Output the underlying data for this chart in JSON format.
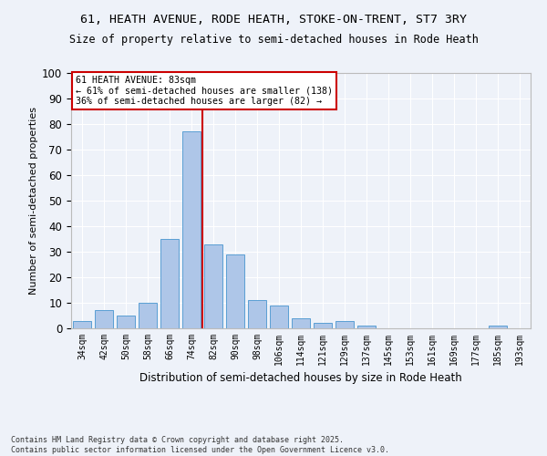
{
  "title1": "61, HEATH AVENUE, RODE HEATH, STOKE-ON-TRENT, ST7 3RY",
  "title2": "Size of property relative to semi-detached houses in Rode Heath",
  "xlabel": "Distribution of semi-detached houses by size in Rode Heath",
  "ylabel": "Number of semi-detached properties",
  "categories": [
    "34sqm",
    "42sqm",
    "50sqm",
    "58sqm",
    "66sqm",
    "74sqm",
    "82sqm",
    "90sqm",
    "98sqm",
    "106sqm",
    "114sqm",
    "121sqm",
    "129sqm",
    "137sqm",
    "145sqm",
    "153sqm",
    "161sqm",
    "169sqm",
    "177sqm",
    "185sqm",
    "193sqm"
  ],
  "values": [
    3,
    7,
    5,
    10,
    35,
    77,
    33,
    29,
    11,
    9,
    4,
    2,
    3,
    1,
    0,
    0,
    0,
    0,
    0,
    1,
    0
  ],
  "bar_color": "#aec6e8",
  "bar_edge_color": "#5a9fd4",
  "vline_x": 5.5,
  "vline_color": "#cc0000",
  "annotation_title": "61 HEATH AVENUE: 83sqm",
  "annotation_line1": "← 61% of semi-detached houses are smaller (138)",
  "annotation_line2": "36% of semi-detached houses are larger (82) →",
  "annotation_box_color": "#ffffff",
  "annotation_box_edge": "#cc0000",
  "ylim": [
    0,
    100
  ],
  "footnote": "Contains HM Land Registry data © Crown copyright and database right 2025.\nContains public sector information licensed under the Open Government Licence v3.0.",
  "bg_color": "#eef2f9",
  "grid_color": "#ffffff"
}
